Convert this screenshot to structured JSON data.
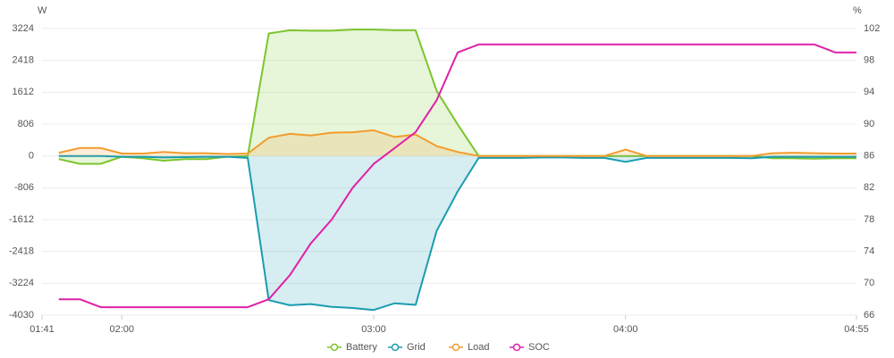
{
  "chart_data": {
    "type": "line",
    "y_label": "W",
    "y2_label": "%",
    "x": [
      105,
      110,
      115,
      120,
      125,
      130,
      135,
      140,
      145,
      150,
      155,
      160,
      165,
      170,
      175,
      180,
      185,
      190,
      195,
      200,
      205,
      210,
      215,
      220,
      225,
      230,
      235,
      240,
      245,
      250,
      255,
      260,
      265,
      270,
      275,
      280,
      285,
      290,
      295
    ],
    "xlim": [
      101,
      295
    ],
    "xticks": [
      {
        "value": 101,
        "label": "01:41"
      },
      {
        "value": 120,
        "label": "02:00"
      },
      {
        "value": 180,
        "label": "03:00"
      },
      {
        "value": 240,
        "label": "04:00"
      },
      {
        "value": 295,
        "label": "04:55"
      }
    ],
    "ylim": [
      -4030,
      3224
    ],
    "yticks": [
      -4030,
      -3224,
      -2418,
      -1612,
      -806,
      0,
      806,
      1612,
      2418,
      3224
    ],
    "y2lim": [
      66,
      102
    ],
    "y2ticks": [
      66,
      70,
      74,
      78,
      82,
      86,
      90,
      94,
      98,
      102
    ],
    "grid": true,
    "legend": "bottom",
    "series": [
      {
        "name": "Battery",
        "color": "#7cc52c",
        "area": true,
        "values": [
          -80,
          -200,
          -200,
          -20,
          -60,
          -120,
          -80,
          -80,
          -20,
          0,
          3100,
          3180,
          3170,
          3170,
          3200,
          3200,
          3180,
          3180,
          1650,
          800,
          0,
          0,
          0,
          0,
          0,
          0,
          0,
          0,
          0,
          0,
          0,
          0,
          0,
          0,
          -60,
          -60,
          -70,
          -60,
          -60
        ]
      },
      {
        "name": "Grid",
        "color": "#1a9cb0",
        "area": true,
        "values": [
          0,
          0,
          0,
          -20,
          -20,
          -40,
          -30,
          -20,
          -20,
          -50,
          -3650,
          -3780,
          -3750,
          -3820,
          -3850,
          -3900,
          -3730,
          -3770,
          -1900,
          -900,
          -50,
          -50,
          -50,
          -40,
          -40,
          -50,
          -50,
          -150,
          -50,
          -50,
          -50,
          -50,
          -50,
          -60,
          -20,
          -20,
          -20,
          -20,
          -20
        ]
      },
      {
        "name": "Load",
        "color": "#f39c2c",
        "area": true,
        "values": [
          80,
          200,
          200,
          60,
          60,
          100,
          70,
          70,
          50,
          60,
          460,
          560,
          520,
          590,
          600,
          650,
          480,
          540,
          250,
          100,
          0,
          0,
          0,
          0,
          0,
          0,
          0,
          160,
          0,
          0,
          0,
          0,
          0,
          0,
          70,
          80,
          70,
          60,
          60
        ]
      },
      {
        "name": "SOC",
        "color": "#e020a8",
        "axis": "y2",
        "area": false,
        "values": [
          68,
          68,
          67,
          67,
          67,
          67,
          67,
          67,
          67,
          67,
          68,
          71,
          75,
          78,
          82,
          85,
          87,
          89,
          93,
          99,
          100,
          100,
          100,
          100,
          100,
          100,
          100,
          100,
          100,
          100,
          100,
          100,
          100,
          100,
          100,
          100,
          100,
          99,
          99
        ]
      }
    ]
  }
}
